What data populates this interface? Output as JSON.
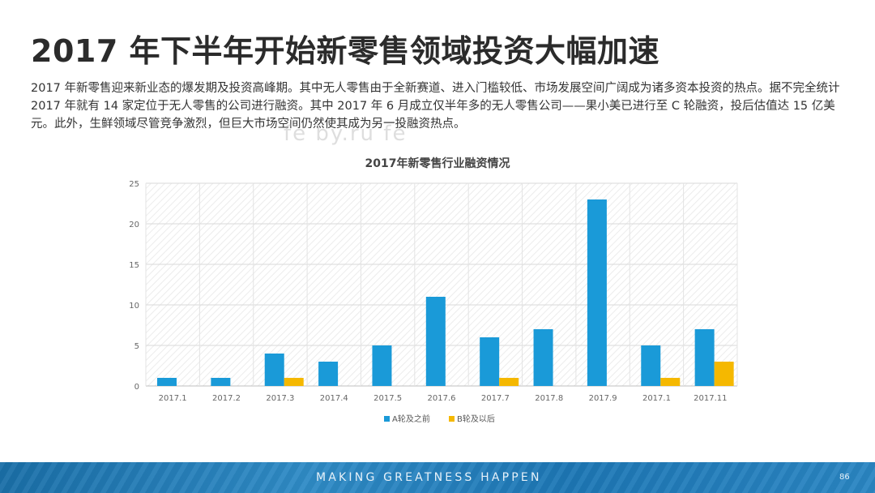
{
  "slide": {
    "title": "2017 年下半年开始新零售领域投资大幅加速",
    "paragraph": "2017 年新零售迎来新业态的爆发期及投资高峰期。其中无人零售由于全新赛道、进入门槛较低、市场发展空间广阔成为诸多资本投资的热点。据不完全统计 2017 年就有 14 家定位于无人零售的公司进行融资。其中 2017 年 6 月成立仅半年多的无人零售公司——果小美已进行至 C 轮融资，投后估值达 15 亿美元。此外，生鲜领域尽管竞争激烈，但巨大市场空间仍然使其成为另一投融资热点。",
    "watermark": "fe by.ru fe",
    "footer_tagline": "MAKING GREATNESS HAPPEN",
    "page_number": "86"
  },
  "colors": {
    "series_a": "#1a9ad8",
    "series_b": "#f5b800",
    "footer": "#2a86c3"
  },
  "chart_data": {
    "type": "bar",
    "title": "2017年新零售行业融资情况",
    "categories": [
      "2017.1",
      "2017.2",
      "2017.3",
      "2017.4",
      "2017.5",
      "2017.6",
      "2017.7",
      "2017.8",
      "2017.9",
      "2017.1",
      "2017.11"
    ],
    "series": [
      {
        "name": "A轮及之前",
        "values": [
          1,
          1,
          4,
          3,
          5,
          11,
          6,
          7,
          23,
          5,
          7
        ]
      },
      {
        "name": "B轮及以后",
        "values": [
          0,
          0,
          1,
          0,
          0,
          0,
          1,
          0,
          0,
          1,
          3
        ]
      }
    ],
    "ylim": [
      0,
      25
    ],
    "yticks": [
      0,
      5,
      10,
      15,
      20,
      25
    ],
    "grid": true,
    "legend": "bottom"
  }
}
